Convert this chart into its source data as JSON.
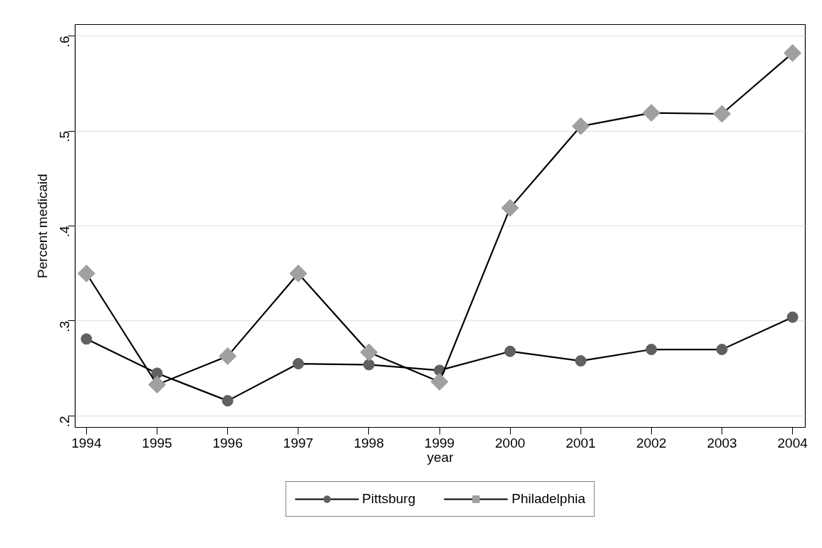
{
  "chart_data": {
    "type": "line",
    "xlabel": "year",
    "ylabel": "Percent medicaid",
    "x": [
      1994,
      1995,
      1996,
      1997,
      1998,
      1999,
      2000,
      2001,
      2002,
      2003,
      2004
    ],
    "series": [
      {
        "name": "Pittsburg",
        "color": "#606060",
        "marker": "circle",
        "values": [
          0.281,
          0.245,
          0.216,
          0.255,
          0.254,
          0.248,
          0.268,
          0.258,
          0.27,
          0.27,
          0.304
        ]
      },
      {
        "name": "Philadelphia",
        "color": "#a0a0a0",
        "marker": "diamond",
        "values": [
          0.35,
          0.233,
          0.263,
          0.35,
          0.267,
          0.236,
          0.419,
          0.505,
          0.519,
          0.518,
          0.582
        ]
      }
    ],
    "xlim": [
      1993.84,
      2004.18
    ],
    "ylim": [
      0.188,
      0.612
    ],
    "xticks": [
      1994,
      1995,
      1996,
      1997,
      1998,
      1999,
      2000,
      2001,
      2002,
      2003,
      2004
    ],
    "yticks": [
      {
        "value": 0.2,
        "label": ".2"
      },
      {
        "value": 0.3,
        "label": ".3"
      },
      {
        "value": 0.4,
        "label": ".4"
      },
      {
        "value": 0.5,
        "label": ".5"
      },
      {
        "value": 0.6,
        "label": ".6"
      }
    ],
    "grid": "y",
    "legend": "bottom",
    "line_style": "solid"
  }
}
